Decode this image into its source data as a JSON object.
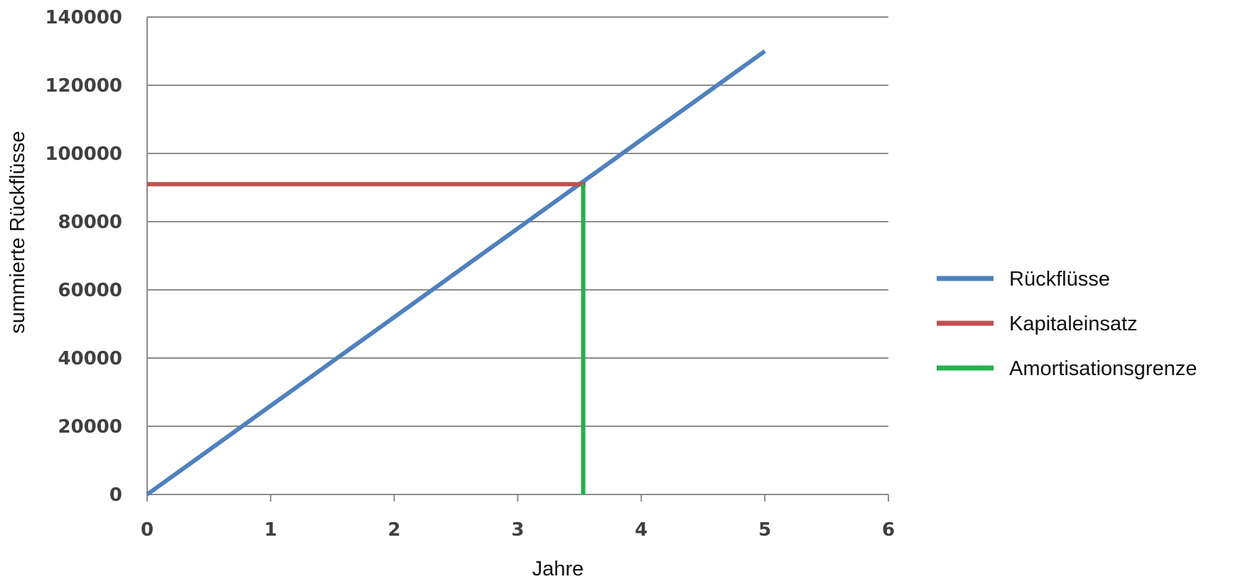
{
  "chart_data": {
    "type": "line",
    "title": "",
    "xlabel": "Jahre",
    "ylabel": "summierte Rückflüsse",
    "xlim": [
      0,
      6
    ],
    "ylim": [
      0,
      140000
    ],
    "x_ticks": [
      "0",
      "1",
      "2",
      "3",
      "4",
      "5",
      "6"
    ],
    "y_ticks": [
      "0",
      "20000",
      "40000",
      "60000",
      "80000",
      "100000",
      "120000",
      "140000"
    ],
    "grid": "horizontal",
    "legend_position": "right",
    "series": [
      {
        "name": "Rückflüsse",
        "color": "#4f81bd",
        "points": [
          [
            0,
            0
          ],
          [
            5,
            130000
          ]
        ]
      },
      {
        "name": "Kapitaleinsatz",
        "color": "#c0504d",
        "points": [
          [
            0,
            91000
          ],
          [
            3.55,
            91000
          ]
        ]
      },
      {
        "name": "Amortisationsgrenze",
        "color": "#22b14c",
        "points": [
          [
            3.53,
            0
          ],
          [
            3.53,
            91000
          ]
        ]
      }
    ]
  }
}
